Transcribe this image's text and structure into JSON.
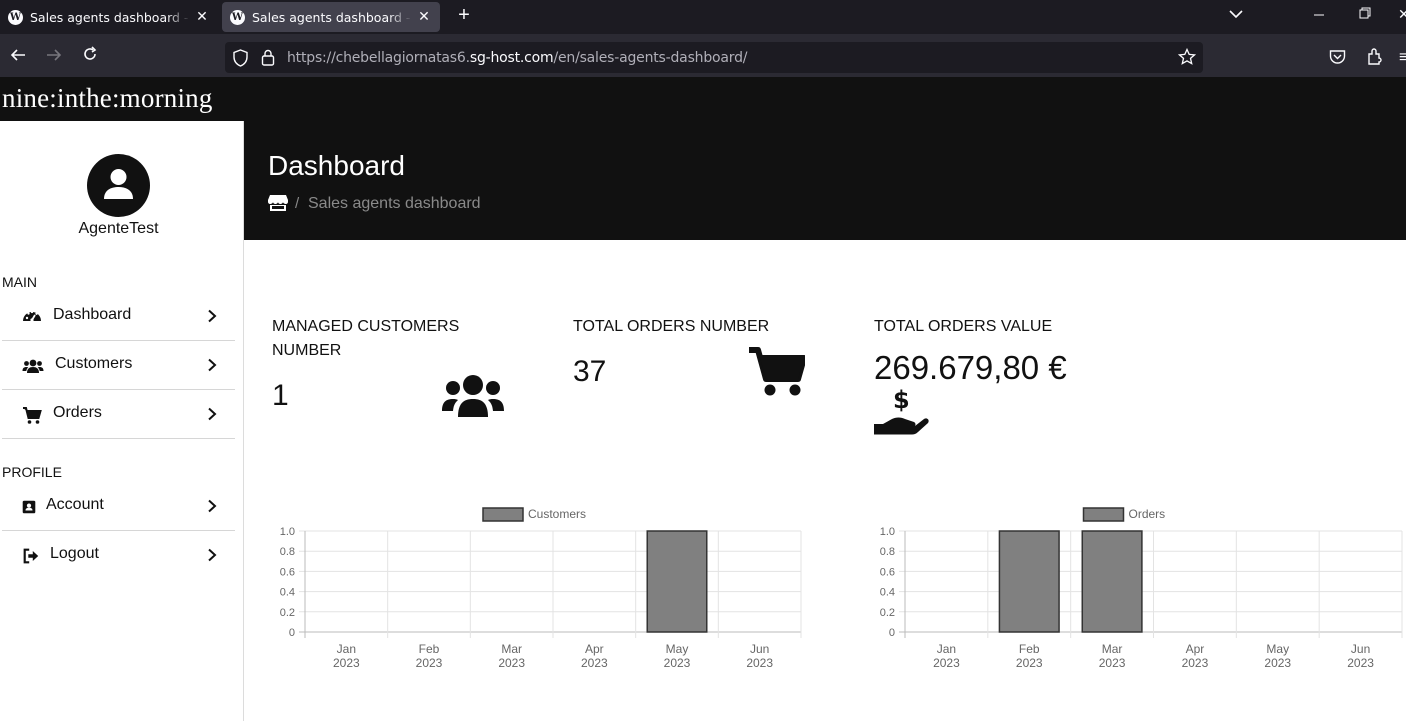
{
  "browser": {
    "tabs": [
      {
        "title": "Sales agents dashboard - Nineinthemorning",
        "active": false
      },
      {
        "title": "Sales agents dashboard - Nineinthemorning",
        "active": true
      }
    ],
    "url": {
      "host_pre": "https://chebellagiornatas6.",
      "host_main": "sg-host.com",
      "path": "/en/sales-agents-dashboard/"
    }
  },
  "site": {
    "logo": "nine:inthe:morning"
  },
  "sidebar": {
    "username": "AgenteTest",
    "main_label": "MAIN",
    "main_items": [
      {
        "label": "Dashboard",
        "icon": "gauge-icon"
      },
      {
        "label": "Customers",
        "icon": "users-icon"
      },
      {
        "label": "Orders",
        "icon": "cart-icon"
      }
    ],
    "profile_label": "PROFILE",
    "profile_items": [
      {
        "label": "Account",
        "icon": "id-badge-icon"
      },
      {
        "label": "Logout",
        "icon": "sign-out-icon"
      }
    ]
  },
  "header": {
    "title": "Dashboard",
    "breadcrumb_sep": "/",
    "breadcrumb_current": "Sales agents dashboard"
  },
  "stats": {
    "customers": {
      "label_line1": "MANAGED CUSTOMERS",
      "label_line2": "NUMBER",
      "value": "1",
      "icon": "users-icon"
    },
    "orders": {
      "label": "TOTAL ORDERS NUMBER",
      "value": "37",
      "icon": "cart-icon"
    },
    "value": {
      "label": "TOTAL ORDERS VALUE",
      "value": "269.679,80 €",
      "icon": "hand-dollar-icon"
    }
  },
  "chart_data": [
    {
      "type": "bar",
      "categories": [
        [
          "Jan",
          "2023"
        ],
        [
          "Feb",
          "2023"
        ],
        [
          "Mar",
          "2023"
        ],
        [
          "Apr",
          "2023"
        ],
        [
          "May",
          "2023"
        ],
        [
          "Jun",
          "2023"
        ]
      ],
      "series": [
        {
          "name": "Customers",
          "values": [
            0,
            0,
            0,
            0,
            1,
            0
          ]
        }
      ],
      "yticks": [
        "1.0",
        "0.8",
        "0.6",
        "0.4",
        "0.2",
        "0"
      ],
      "ylim": [
        0,
        1
      ],
      "legend": "top-center",
      "grid": true,
      "bar_color": "#808080"
    },
    {
      "type": "bar",
      "categories": [
        [
          "Jan",
          "2023"
        ],
        [
          "Feb",
          "2023"
        ],
        [
          "Mar",
          "2023"
        ],
        [
          "Apr",
          "2023"
        ],
        [
          "May",
          "2023"
        ],
        [
          "Jun",
          "2023"
        ]
      ],
      "series": [
        {
          "name": "Orders",
          "values": [
            0,
            1,
            1,
            0,
            0,
            0
          ]
        }
      ],
      "yticks": [
        "1.0",
        "0.8",
        "0.6",
        "0.4",
        "0.2",
        "0"
      ],
      "ylim": [
        0,
        1
      ],
      "legend": "top-center",
      "grid": true,
      "bar_color": "#808080"
    }
  ]
}
